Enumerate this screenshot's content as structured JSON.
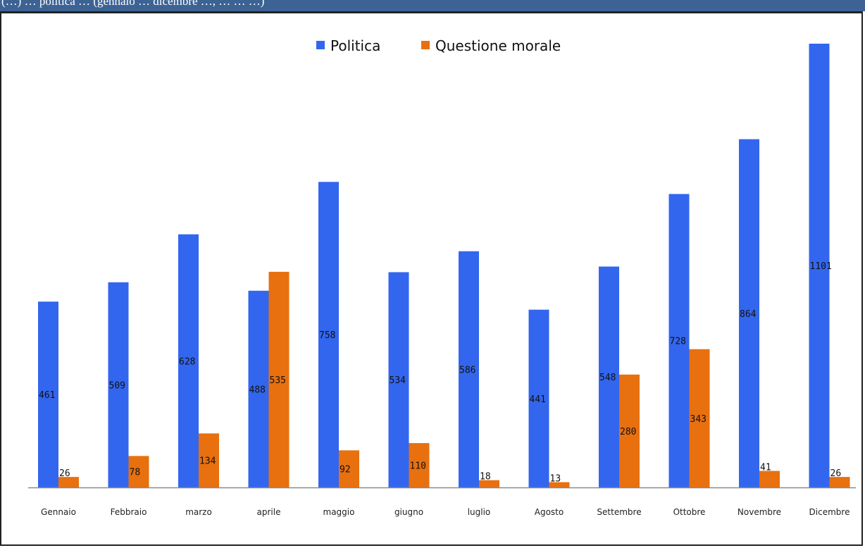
{
  "banner": {
    "text": "(…) … politica … (gennaio … dicembre …, … … …)"
  },
  "chart_data": {
    "type": "bar",
    "categories": [
      "Gennaio",
      "Febbraio",
      "marzo",
      "aprile",
      "maggio",
      "giugno",
      "luglio",
      "Agosto",
      "Settembre",
      "Ottobre",
      "Novembre",
      "Dicembre"
    ],
    "series": [
      {
        "name": "Politica",
        "color": "#3366ee",
        "values": [
          461,
          509,
          628,
          488,
          758,
          534,
          586,
          441,
          548,
          728,
          864,
          1101
        ]
      },
      {
        "name": "Questione morale",
        "color": "#e8700f",
        "values": [
          26,
          78,
          134,
          535,
          92,
          110,
          18,
          13,
          280,
          343,
          41,
          26
        ]
      }
    ],
    "title": "",
    "xlabel": "",
    "ylabel": "",
    "ylim": [
      0,
      1101
    ],
    "legend_position": "top-center",
    "grid": false,
    "data_labels": true
  }
}
